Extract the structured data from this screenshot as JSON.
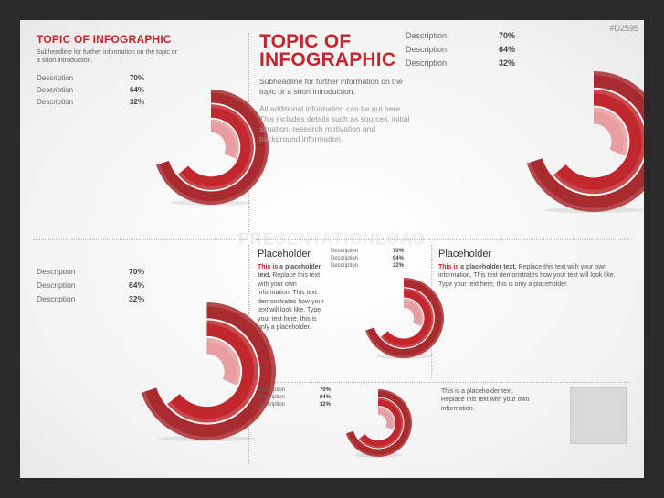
{
  "tag": "#D2595",
  "watermark": "PRESENTATIONLOAD",
  "colors": {
    "accent": "#c1272d",
    "accent_mid": "#a82b2f",
    "accent_light": "#e89ea0",
    "text_muted": "#666666",
    "text_dark": "#333333",
    "bg": "#ffffff"
  },
  "radial_chart": {
    "type": "radial-bar",
    "start_angle": 90,
    "sweep_dir": "cw",
    "arcs": [
      {
        "label": "Description",
        "pct": 70,
        "value": 0.7,
        "color": "#a82b2f"
      },
      {
        "label": "Description",
        "pct": 64,
        "value": 0.64,
        "color": "#c1272d"
      },
      {
        "label": "Description",
        "pct": 32,
        "value": 0.32,
        "color": "#e89ea0"
      }
    ],
    "ring_thickness_ratio": 0.23
  },
  "p1": {
    "title": "TOPIC OF INFOGRAPHIC",
    "sub": "Subheadline for further information on the topic or a short introduction.",
    "title_fontsize": 12,
    "sub_fontsize": 7,
    "desc_fontsize": 8,
    "radial_size": 130
  },
  "p2": {
    "title_l1": "TOPIC OF",
    "title_l2": "INFOGRAPHIC",
    "sub": "Subheadline for further information on the topic or a short introduction.",
    "body": "All additional information can be put here. This includes details such as sources, initial situation, research motivation and background information.",
    "title_fontsize": 21,
    "sub_fontsize": 8.5,
    "body_fontsize": 8.5,
    "desc_fontsize": 9,
    "radial_size": 158
  },
  "p3": {
    "desc_fontsize": 8.5,
    "radial_size": 155
  },
  "p4": {
    "heading": "Placeholder",
    "body_pre": "This is",
    "body_bold": " a placeholder text.",
    "body_rest": " Replace this text with your own information. This text demonstrates how your text will look like. Type your text here, this is only a placeholder.",
    "heading_fontsize": 11,
    "body_fontsize": 7,
    "desc_fontsize": 6,
    "radial_size": 92
  },
  "p5": {
    "heading": "Placeholder",
    "body_pre": "This is",
    "body_bold": " a placeholder text.",
    "body_rest": " Replace this text with your own information. This text demonstrates how your text will look like. Type your text here, this is only a placeholder.",
    "heading_fontsize": 11,
    "body_fontsize": 7
  },
  "p6": {
    "body": "This is a placeholder text. Replace this text with your own information.",
    "body_fontsize": 7,
    "desc_fontsize": 6,
    "radial_size": 78
  }
}
